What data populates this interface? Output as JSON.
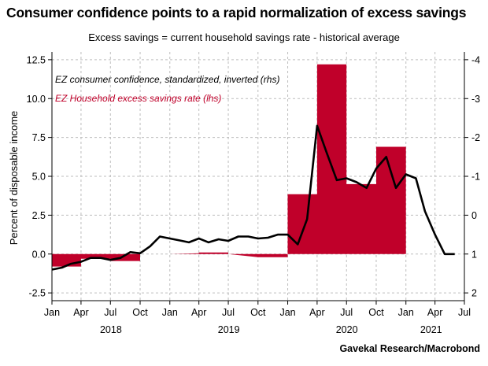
{
  "chart_data": {
    "type": "area",
    "title": "Consumer confidence points to a rapid normalization of excess savings",
    "subtitle": "Excess savings = current household savings rate - historical average",
    "source": "Gavekal Research/Macrobond",
    "ylabel": "Percent of disposable income",
    "y_left": {
      "ticks": [
        "-2.5",
        "0.0",
        "2.5",
        "5.0",
        "7.5",
        "10.0",
        "12.5"
      ],
      "values": [
        -2.5,
        0,
        2.5,
        5,
        7.5,
        10,
        12.5
      ],
      "ylim": [
        -3.0,
        13.0
      ]
    },
    "y_right": {
      "ticks": [
        "2",
        "1",
        "0",
        "-1",
        "-2",
        "-3",
        "-4"
      ],
      "values": [
        2,
        1,
        0,
        -1,
        -2,
        -3,
        -4
      ],
      "inverted": true
    },
    "x_month_labels": [
      "Jan",
      "Apr",
      "Jul",
      "Oct",
      "Jan",
      "Apr",
      "Jul",
      "Oct",
      "Jan",
      "Apr",
      "Jul",
      "Oct",
      "Jan",
      "Apr",
      "Jul"
    ],
    "x_year_labels": [
      "2018",
      "2019",
      "2020",
      "2021"
    ],
    "grid": true,
    "legend_position": "top-left",
    "series": [
      {
        "name": "EZ Household excess savings rate (lhs)",
        "type": "area",
        "axis": "left",
        "color": "#c0002a",
        "x": [
          "2018-01-01",
          "2018-01-01",
          "2018-04-01",
          "2018-04-01",
          "2018-07-01",
          "2018-07-01",
          "2018-10-01",
          "2018-10-01",
          "2019-01-01",
          "2019-01-01",
          "2019-04-01",
          "2019-04-01",
          "2019-07-01",
          "2019-07-01",
          "2019-10-01",
          "2019-10-01",
          "2020-01-01",
          "2020-01-01",
          "2020-04-01",
          "2020-04-01",
          "2020-07-01",
          "2020-07-01",
          "2020-10-01",
          "2020-10-01",
          "2021-01-01"
        ],
        "values": [
          0,
          -0.8,
          -0.8,
          -0.3,
          -0.3,
          -0.45,
          -0.45,
          0,
          0,
          0,
          0.05,
          0.1,
          0.1,
          0,
          -0.2,
          -0.2,
          -0.2,
          3.85,
          3.85,
          12.2,
          12.2,
          4.5,
          4.5,
          6.9,
          6.9
        ]
      },
      {
        "name": "EZ consumer confidence, standardized, inverted (rhs)",
        "type": "line",
        "axis": "right",
        "color": "#000000",
        "x": [
          "2018-01-01",
          "2018-02-01",
          "2018-03-01",
          "2018-04-01",
          "2018-05-01",
          "2018-06-01",
          "2018-07-01",
          "2018-08-01",
          "2018-09-01",
          "2018-10-01",
          "2018-11-01",
          "2018-12-01",
          "2019-01-01",
          "2019-02-01",
          "2019-03-01",
          "2019-04-01",
          "2019-05-01",
          "2019-06-01",
          "2019-07-01",
          "2019-08-01",
          "2019-09-01",
          "2019-10-01",
          "2019-11-01",
          "2019-12-01",
          "2020-01-01",
          "2020-02-01",
          "2020-03-01",
          "2020-04-01",
          "2020-05-01",
          "2020-06-01",
          "2020-07-01",
          "2020-08-01",
          "2020-09-01",
          "2020-10-01",
          "2020-11-01",
          "2020-12-01",
          "2021-01-01",
          "2021-02-01",
          "2021-03-01",
          "2021-04-01",
          "2021-05-01",
          "2021-06-01"
        ],
        "values": [
          1.4,
          1.35,
          1.25,
          1.2,
          1.1,
          1.1,
          1.15,
          1.1,
          0.95,
          0.98,
          0.8,
          0.55,
          0.6,
          0.65,
          0.7,
          0.6,
          0.7,
          0.62,
          0.66,
          0.55,
          0.55,
          0.6,
          0.58,
          0.5,
          0.5,
          0.75,
          0.1,
          -2.3,
          -1.6,
          -0.9,
          -0.95,
          -0.85,
          -0.7,
          -1.2,
          -1.5,
          -0.7,
          -1.05,
          -0.95,
          -0.1,
          0.5,
          1.0,
          1.0
        ]
      }
    ]
  }
}
